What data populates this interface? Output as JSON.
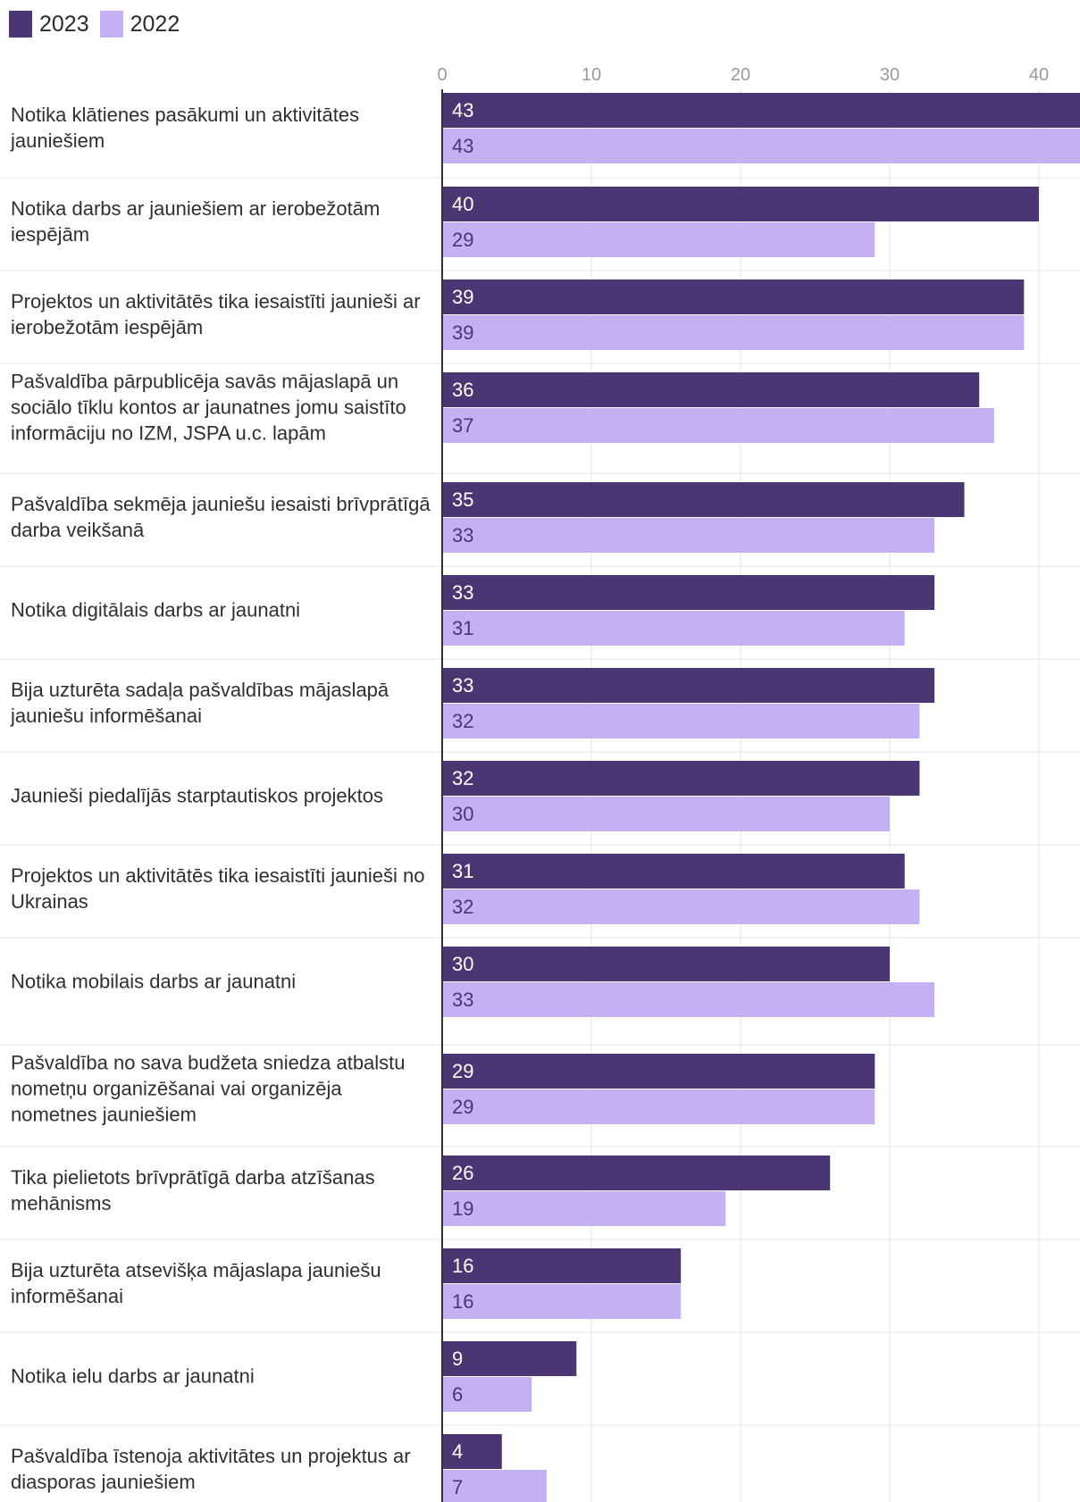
{
  "colors": {
    "s2023": "#4b3673",
    "s2022": "#c4b1f4"
  },
  "chart_data": {
    "type": "bar",
    "orientation": "horizontal",
    "title": "",
    "xlabel": "",
    "ylabel": "",
    "xlim": [
      0,
      43
    ],
    "ticks": [
      0,
      10,
      20,
      30,
      40
    ],
    "legend": "top-left",
    "categories": [
      "Notika klātienes pasākumi un aktivitātes jauniešiem",
      "Notika darbs ar jauniešiem ar ierobežotām iespējām",
      "Projektos un aktivitātēs tika iesaistīti jaunieši ar ierobežotām iespējām",
      "Pašvaldība pārpublicēja savās mājaslapā un sociālo tīklu kontos ar jaunatnes jomu saistīto informāciju no IZM, JSPA u.c. lapām",
      "Pašvaldība sekmēja jauniešu iesaisti brīvprātīgā darba veikšanā",
      "Notika digitālais darbs ar jaunatni",
      "Bija uzturēta sadaļa pašvaldības mājaslapā jauniešu informēšanai",
      "Jaunieši piedalījās starptautiskos projektos",
      "Projektos un aktivitātēs tika iesaistīti jaunieši no Ukrainas",
      "Notika mobilais darbs ar jaunatni",
      "Pašvaldība no sava budžeta sniedza atbalstu nometņu organizēšanai vai organizēja nometnes jauniešiem",
      "Tika pielietots brīvprātīgā darba atzīšanas mehānisms",
      "Bija uzturēta atsevišķa mājaslapa jauniešu informēšanai",
      "Notika ielu darbs ar jaunatni",
      "Pašvaldība īstenoja aktivitātes un projektus ar diasporas jauniešiem"
    ],
    "series": [
      {
        "name": "2023",
        "values": [
          43,
          40,
          39,
          36,
          35,
          33,
          33,
          32,
          31,
          30,
          29,
          26,
          16,
          9,
          4
        ]
      },
      {
        "name": "2022",
        "values": [
          43,
          29,
          39,
          37,
          33,
          31,
          32,
          30,
          32,
          33,
          29,
          19,
          16,
          6,
          7
        ]
      }
    ]
  }
}
